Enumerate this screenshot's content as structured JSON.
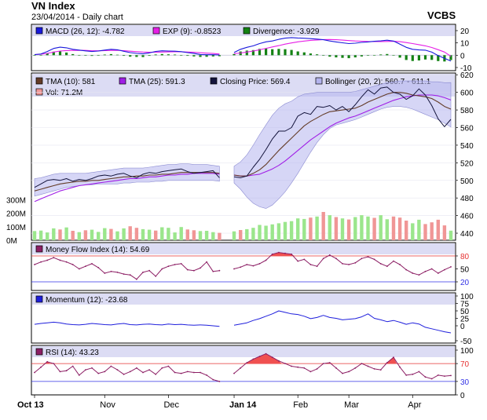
{
  "header": {
    "title": "VN Index",
    "subtitle": "23/04/2014 - Daily chart",
    "broker": "VCBS"
  },
  "colors": {
    "panel_header_bg": "#dcdcf4",
    "border": "#000000",
    "grid": "#c8c8dc",
    "macd": "#1a1adc",
    "signal": "#e61ee6",
    "divergence": "#148214",
    "tma10": "#643c28",
    "tma25": "#a01ee6",
    "close": "#14143c",
    "bollinger_fill": "#b4b4ee",
    "bollinger_line": "#8c8cd2",
    "vol_up": "#9be68c",
    "vol_down": "#f09696",
    "mfi": "#8c1e64",
    "mfi_fill": "#f05050",
    "momentum": "#1e1edc",
    "rsi": "#8c1e64",
    "rsi_fill": "#f05050",
    "ref_red": "#e63232",
    "ref_blue": "#3232e6"
  },
  "chart_data": [
    {
      "type": "line",
      "panel": "macd",
      "legend": [
        {
          "label": "MACD (26, 12): -4.782",
          "color": "#1a1adc"
        },
        {
          "label": "EXP (9): -0.8523",
          "color": "#e61ee6"
        },
        {
          "label": "Divergence: -3.929",
          "color": "#148214"
        }
      ],
      "ylim": [
        -10,
        20
      ],
      "yticks": [
        20,
        10,
        0,
        -10
      ],
      "series": [
        {
          "name": "MACD (26, 12)",
          "values": [
            0.5,
            1.0,
            3.0,
            5.5,
            6.5,
            6.0,
            4.8,
            4.2,
            3.5,
            3.0,
            3.4,
            4.2,
            4.8,
            4.4,
            3.2,
            2.1,
            1.5,
            1.1,
            1.9,
            3.1,
            3.6,
            3.4,
            3.3,
            2.9,
            2.1,
            1.4,
            0.6,
            0.4,
            0.4,
            0.2,
            2.2,
            4.8,
            6.4,
            7.6,
            9.5,
            10.9,
            11.6,
            12.9,
            13.9,
            14.3,
            14.0,
            13.8,
            13.5,
            13.1,
            12.6,
            11.6,
            10.8,
            10.1,
            9.5,
            9.8,
            10.4,
            10.8,
            11.3,
            11.7,
            12.2,
            11.5,
            9.0,
            6.4,
            4.8,
            4.3,
            4.1,
            2.5,
            -0.3,
            -2.5,
            -4.782
          ]
        },
        {
          "name": "EXP (9)",
          "values": [
            0.5,
            0.8,
            1.5,
            2.6,
            3.4,
            3.8,
            3.9,
            4.0,
            3.9,
            3.6,
            3.6,
            3.7,
            3.9,
            4.0,
            3.7,
            3.3,
            2.9,
            2.6,
            2.4,
            2.5,
            2.6,
            2.7,
            2.8,
            2.8,
            2.6,
            2.4,
            2.0,
            1.7,
            1.4,
            1.0,
            1.2,
            1.8,
            2.6,
            3.4,
            4.4,
            5.6,
            6.7,
            7.8,
            9.0,
            10.0,
            10.9,
            11.5,
            12.1,
            12.4,
            12.7,
            12.8,
            12.6,
            12.3,
            11.9,
            11.6,
            11.4,
            11.2,
            11.1,
            11.1,
            11.2,
            11.3,
            11.0,
            10.3,
            9.5,
            8.6,
            7.6,
            6.3,
            4.5,
            2.6,
            -0.8523
          ]
        },
        {
          "name": "Divergence",
          "type": "bar",
          "values": [
            0.0,
            0.2,
            1.5,
            2.9,
            3.1,
            2.2,
            0.9,
            0.2,
            -0.4,
            -0.6,
            -0.2,
            0.5,
            0.9,
            0.4,
            -0.5,
            -1.2,
            -1.4,
            -1.5,
            -0.5,
            0.6,
            1.0,
            0.7,
            0.5,
            0.1,
            -0.5,
            -1.0,
            -1.4,
            -1.3,
            -1.0,
            -0.8,
            1.0,
            3.0,
            3.8,
            4.2,
            5.1,
            5.3,
            4.9,
            5.1,
            4.9,
            4.3,
            3.1,
            2.3,
            1.4,
            0.7,
            -0.1,
            -1.2,
            -1.8,
            -2.2,
            -2.4,
            -1.8,
            -1.0,
            -0.4,
            0.2,
            0.6,
            1.0,
            0.2,
            -2.0,
            -3.9,
            -4.7,
            -4.3,
            -3.5,
            -3.8,
            -4.8,
            -5.1,
            -3.929
          ]
        }
      ],
      "gap_after_index": 29
    },
    {
      "type": "line",
      "panel": "price",
      "legend": [
        {
          "label": "TMA (10): 581",
          "color": "#643c28"
        },
        {
          "label": "TMA (25): 591.3",
          "color": "#a01ee6"
        },
        {
          "label": "Closing Price: 569.4",
          "color": "#14143c"
        },
        {
          "label": "Bollinger (20, 2): 560.7 - 611.1",
          "color": "#b4b4ee"
        },
        {
          "label": "Vol: 71.2M",
          "color": "#f09696"
        }
      ],
      "ylim": [
        432,
        622
      ],
      "yticks": [
        620,
        600,
        580,
        560,
        540,
        520,
        500,
        480,
        460,
        440
      ],
      "x_labels": [
        "Oct 13",
        "Nov",
        "Dec",
        "Jan 14",
        "Feb",
        "Mar",
        "Apr"
      ],
      "x_label_positions": [
        0,
        11,
        21,
        30,
        40,
        48,
        58
      ],
      "series": [
        {
          "name": "Closing Price",
          "values": [
            492,
            496,
            500,
            501,
            500,
            502,
            499,
            501,
            500,
            502,
            505,
            506,
            505,
            507,
            508,
            505,
            503,
            507,
            509,
            508,
            510,
            511,
            512,
            513,
            510,
            508,
            509,
            510,
            511,
            503,
            504,
            503,
            505,
            515,
            524,
            535,
            547,
            556,
            556,
            560,
            573,
            577,
            575,
            584,
            583,
            585,
            580,
            584,
            578,
            586,
            595,
            603,
            598,
            605,
            606,
            600,
            598,
            592,
            596,
            604,
            597,
            585,
            570,
            561,
            569.4
          ]
        },
        {
          "name": "TMA (10)",
          "values": [
            488,
            490,
            492,
            494,
            496,
            497,
            498,
            499,
            499,
            500,
            500,
            501,
            502,
            503,
            504,
            504,
            505,
            505,
            506,
            506,
            507,
            507,
            508,
            509,
            509,
            509,
            509,
            509,
            509,
            508,
            506,
            505,
            505,
            508,
            512,
            518,
            526,
            534,
            541,
            548,
            555,
            562,
            567,
            571,
            575,
            578,
            579,
            580,
            581,
            582,
            585,
            589,
            592,
            595,
            598,
            600,
            600,
            599,
            597,
            596,
            595,
            593,
            589,
            584,
            581
          ]
        },
        {
          "name": "TMA (25)",
          "values": [
            476,
            479,
            482,
            485,
            488,
            490,
            492,
            494,
            495,
            496,
            497,
            498,
            499,
            500,
            501,
            502,
            502,
            503,
            504,
            504,
            505,
            506,
            506,
            507,
            507,
            508,
            508,
            508,
            508,
            507,
            506,
            505,
            505,
            506,
            507,
            510,
            513,
            517,
            522,
            528,
            534,
            540,
            546,
            551,
            556,
            561,
            565,
            568,
            571,
            573,
            576,
            579,
            582,
            585,
            588,
            591,
            593,
            595,
            596,
            597,
            597,
            597,
            596,
            594,
            591.3
          ]
        },
        {
          "name": "Bollinger Upper",
          "values": [
            502,
            503,
            505,
            507,
            508,
            508,
            508,
            508,
            508,
            509,
            510,
            511,
            512,
            513,
            514,
            514,
            514,
            514,
            515,
            516,
            517,
            518,
            518,
            519,
            519,
            518,
            518,
            518,
            517,
            516,
            516,
            521,
            529,
            540,
            552,
            563,
            574,
            582,
            587,
            590,
            595,
            598,
            599,
            600,
            600,
            600,
            600,
            600,
            600,
            601,
            603,
            605,
            607,
            609,
            611,
            612,
            613,
            613,
            613,
            613,
            613,
            612,
            612,
            611,
            611.1
          ]
        },
        {
          "name": "Bollinger Lower",
          "values": [
            482,
            484,
            486,
            488,
            490,
            492,
            493,
            494,
            495,
            495,
            496,
            496,
            496,
            496,
            497,
            497,
            498,
            498,
            498,
            499,
            499,
            500,
            500,
            500,
            500,
            500,
            500,
            500,
            500,
            499,
            497,
            490,
            481,
            474,
            470,
            468,
            472,
            479,
            487,
            497,
            508,
            520,
            532,
            543,
            552,
            559,
            563,
            565,
            567,
            569,
            572,
            575,
            578,
            581,
            583,
            584,
            584,
            583,
            581,
            578,
            575,
            572,
            569,
            565,
            560.7
          ]
        },
        {
          "name": "Vol",
          "type": "bar",
          "values": [
            68,
            72,
            58,
            88,
            80,
            95,
            70,
            60,
            74,
            78,
            62,
            90,
            84,
            66,
            88,
            104,
            92,
            82,
            78,
            72,
            96,
            92,
            58,
            98,
            80,
            74,
            68,
            70,
            60,
            55,
            66,
            76,
            82,
            92,
            114,
            108,
            118,
            126,
            136,
            142,
            162,
            158,
            168,
            176,
            210,
            186,
            172,
            162,
            154,
            172,
            186,
            176,
            166,
            186,
            156,
            176,
            168,
            146,
            126,
            152,
            120,
            133,
            152,
            110,
            71.2
          ]
        }
      ],
      "volume_ticks": [
        "300M",
        "200M",
        "100M",
        "0M"
      ],
      "volume_ylim": [
        0,
        350
      ]
    },
    {
      "type": "line",
      "panel": "mfi",
      "legend": [
        {
          "label": "Money Flow Index (14): 54.69",
          "color": "#8c1e64"
        }
      ],
      "ylim": [
        0,
        100
      ],
      "yticks": [
        80,
        50,
        20
      ],
      "ref_lines": [
        80,
        20
      ],
      "series": [
        {
          "name": "Money Flow Index (14)",
          "values": [
            60,
            66,
            70,
            76,
            70,
            66,
            60,
            50,
            56,
            62,
            53,
            40,
            44,
            42,
            38,
            36,
            26,
            42,
            46,
            33,
            50,
            56,
            60,
            62,
            48,
            46,
            52,
            66,
            44,
            46,
            50,
            54,
            60,
            57,
            62,
            70,
            84,
            88,
            86,
            84,
            68,
            72,
            60,
            56,
            74,
            82,
            74,
            62,
            60,
            64,
            74,
            78,
            72,
            62,
            56,
            68,
            60,
            48,
            40,
            36,
            44,
            50,
            40,
            48,
            54.69
          ]
        }
      ]
    },
    {
      "type": "line",
      "panel": "momentum",
      "legend": [
        {
          "label": "Momentum (12): -23.68",
          "color": "#1e1edc"
        }
      ],
      "ylim": [
        -50,
        100
      ],
      "yticks": [
        100,
        75,
        50,
        25,
        0,
        -50
      ],
      "series": [
        {
          "name": "Momentum (12)",
          "values": [
            5,
            8,
            10,
            12,
            10,
            6,
            4,
            3,
            5,
            8,
            6,
            4,
            3,
            6,
            8,
            4,
            3,
            5,
            6,
            4,
            3,
            6,
            4,
            5,
            3,
            2,
            3,
            2,
            0,
            -2,
            2,
            6,
            10,
            18,
            24,
            32,
            40,
            50,
            45,
            40,
            38,
            32,
            24,
            28,
            35,
            28,
            25,
            20,
            22,
            24,
            30,
            40,
            25,
            20,
            14,
            18,
            12,
            5,
            10,
            6,
            -5,
            -10,
            -15,
            -20,
            -23.68
          ]
        }
      ]
    },
    {
      "type": "line",
      "panel": "rsi",
      "legend": [
        {
          "label": "RSI (14): 43.23",
          "color": "#8c1e64"
        }
      ],
      "ylim": [
        0,
        100
      ],
      "yticks": [
        100,
        70,
        30,
        0
      ],
      "ref_lines": [
        70,
        30
      ],
      "series": [
        {
          "name": "RSI (14)",
          "values": [
            50,
            62,
            74,
            70,
            52,
            54,
            64,
            44,
            56,
            60,
            48,
            52,
            64,
            56,
            46,
            52,
            60,
            50,
            56,
            46,
            60,
            64,
            50,
            48,
            52,
            50,
            50,
            44,
            34,
            30,
            48,
            60,
            72,
            80,
            86,
            92,
            84,
            76,
            70,
            64,
            62,
            60,
            52,
            58,
            70,
            72,
            60,
            48,
            52,
            60,
            70,
            64,
            58,
            56,
            72,
            84,
            62,
            44,
            46,
            52,
            40,
            36,
            44,
            42,
            43.23
          ]
        }
      ]
    }
  ]
}
